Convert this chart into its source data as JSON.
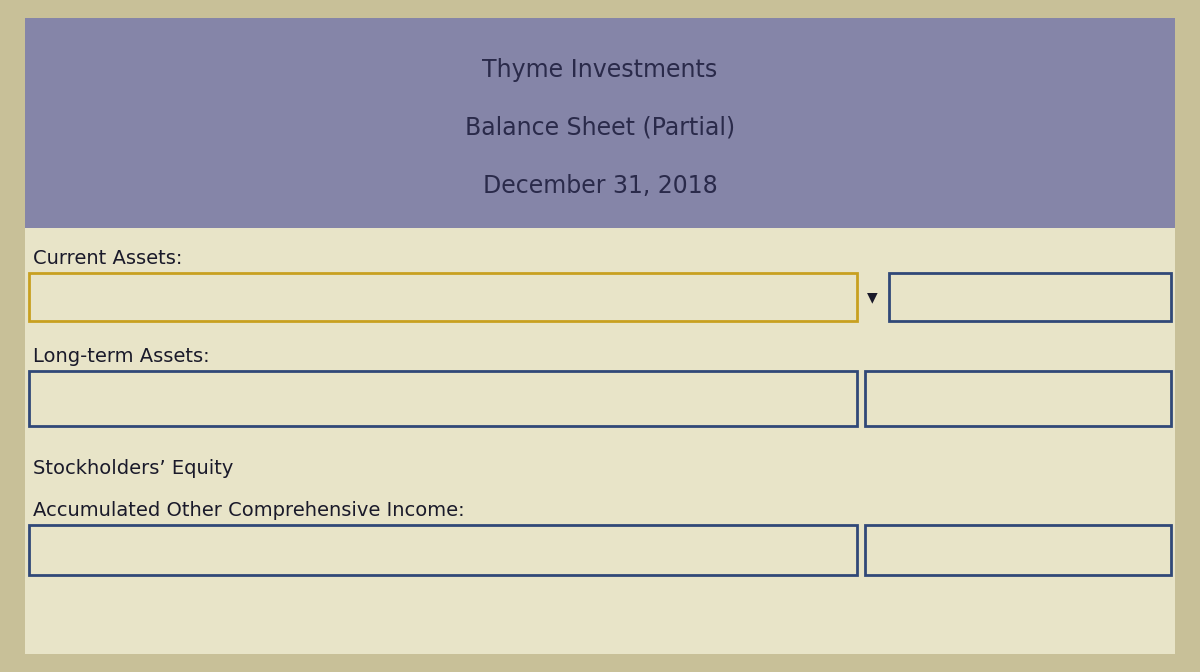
{
  "title_line1": "Thyme Investments",
  "title_line2": "Balance Sheet (Partial)",
  "title_line3": "December 31, 2018",
  "header_bg_color": "#8585a8",
  "body_bg_color": "#e8e4c8",
  "outer_bg_color": "#c8c098",
  "text_color": "#1a1a2a",
  "title_text_color": "#2a2a4a",
  "section_labels": [
    "Current Assets:",
    "Long-term Assets:",
    "Stockholders’ Equity",
    "Accumulated Other Comprehensive Income:"
  ],
  "input_box_border_color_current": "#c8a020",
  "input_box_border_color_other": "#304878",
  "dropdown_arrow_color": "#1a1a2a",
  "font_size_title": 17,
  "font_size_label": 14
}
